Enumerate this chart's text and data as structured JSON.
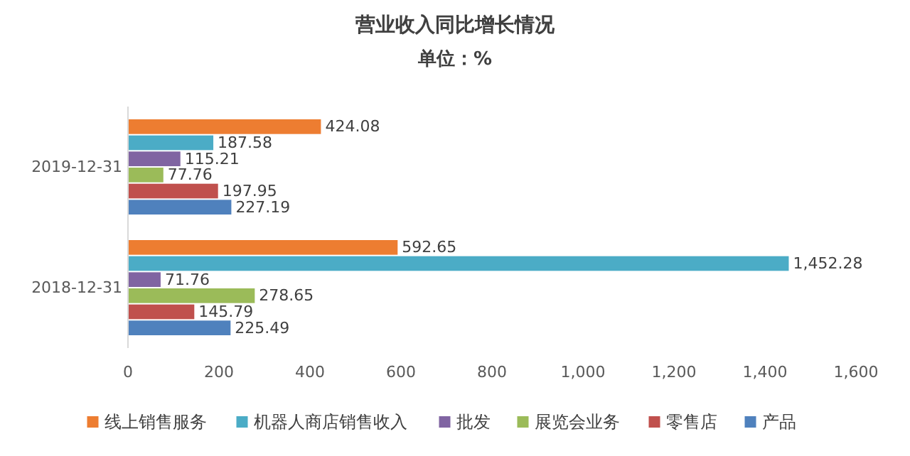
{
  "chart_data": {
    "type": "bar",
    "orientation": "horizontal",
    "title": "营业收入同比增长情况",
    "subtitle": "单位：%",
    "categories": [
      "2019-12-31",
      "2018-12-31"
    ],
    "series": [
      {
        "name": "线上销售服务",
        "color": "#ed7d31",
        "values": [
          424.08,
          592.65
        ],
        "value_labels": [
          "424.08",
          "592.65"
        ]
      },
      {
        "name": "机器人商店销售收入",
        "color": "#4bacc6",
        "values": [
          187.58,
          1452.28
        ],
        "value_labels": [
          "187.58",
          "1,452.28"
        ]
      },
      {
        "name": "批发",
        "color": "#8064a2",
        "values": [
          115.21,
          71.76
        ],
        "value_labels": [
          "115.21",
          "71.76"
        ]
      },
      {
        "name": "展览会业务",
        "color": "#9bbb59",
        "values": [
          77.76,
          278.65
        ],
        "value_labels": [
          "77.76",
          "278.65"
        ]
      },
      {
        "name": "零售店",
        "color": "#c0504d",
        "values": [
          197.95,
          145.79
        ],
        "value_labels": [
          "197.95",
          "145.79"
        ]
      },
      {
        "name": "产品",
        "color": "#4f81bd",
        "values": [
          227.19,
          225.49
        ],
        "value_labels": [
          "227.19",
          "225.49"
        ]
      }
    ],
    "xlim": [
      0,
      1600
    ],
    "xticks": [
      0,
      200,
      400,
      600,
      800,
      {
        "value": 1000,
        "label": "1,000"
      },
      {
        "value": 1200,
        "label": "1,200"
      },
      {
        "value": 1400,
        "label": "1,400"
      },
      {
        "value": 1600,
        "label": "1,600"
      }
    ],
    "legend": "bottom"
  }
}
